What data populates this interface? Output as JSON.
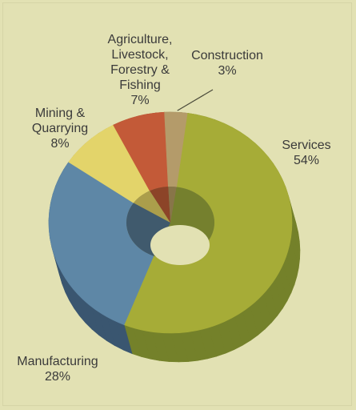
{
  "chart_data": {
    "type": "pie",
    "variant": "3d-donut",
    "title": "",
    "series": [
      {
        "categories": [
          "Services",
          "Manufacturing",
          "Mining & Quarrying",
          "Agriculture, Livestock, Forestry & Fishing",
          "Construction"
        ],
        "values": [
          54,
          28,
          8,
          7,
          3
        ],
        "value_labels": [
          "54%",
          "28%",
          "8%",
          "7%",
          "3%"
        ],
        "label_lines": [
          [
            "Services",
            "54%"
          ],
          [
            "Manufacturing",
            "28%"
          ],
          [
            "Mining &",
            "Quarrying",
            "8%"
          ],
          [
            "Agriculture,",
            "Livestock,",
            "Forestry &",
            "Fishing",
            "7%"
          ],
          [
            "Construction",
            "3%"
          ]
        ]
      }
    ],
    "colors": [
      "#a6ac37",
      "#5e87a6",
      "#e3d46a",
      "#c35a38",
      "#b49b6a"
    ],
    "side_colors": [
      "#74812a",
      "#3a5670",
      "#b0a24a",
      "#8e3e24",
      "#8a7448"
    ],
    "background": "#e2e1b3",
    "legend": "none",
    "start_angle_deg": 8
  }
}
